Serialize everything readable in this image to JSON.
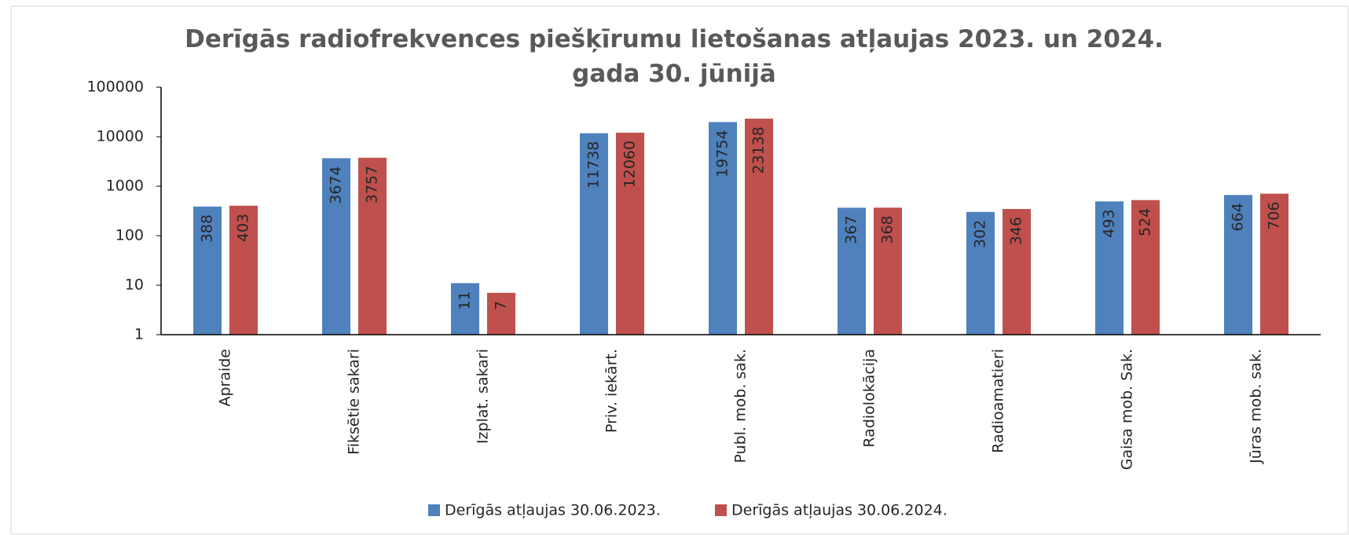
{
  "chart_data": {
    "type": "bar",
    "title": "Derīgās radiofrekvences piešķīrumu lietošanas atļaujas 2023. un 2024. gada 30. jūnijā",
    "categories": [
      "Apraide",
      "Fiksētie sakari",
      "Izplat. sakari",
      "Priv. iekārt.",
      "Publ. mob. sak.",
      "Radiolokācija",
      "Radioamatieri",
      "Gaisa mob. Sak.",
      "Jūras mob. sak."
    ],
    "series": [
      {
        "name": "Derīgās atļaujas 30.06.2023.",
        "color": "#4f81bd",
        "values": [
          388,
          3674,
          11,
          11738,
          19754,
          367,
          302,
          493,
          664
        ]
      },
      {
        "name": "Derīgās atļaujas 30.06.2024.",
        "color": "#c0504d",
        "values": [
          403,
          3757,
          7,
          12060,
          23138,
          368,
          346,
          524,
          706
        ]
      }
    ],
    "ylim": [
      1,
      100000
    ],
    "yticks": [
      1,
      10,
      100,
      1000,
      10000,
      100000
    ],
    "log_scale": true,
    "legend": "bottom"
  }
}
